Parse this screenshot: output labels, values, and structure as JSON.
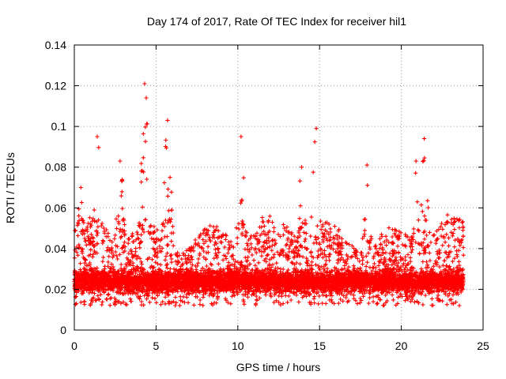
{
  "chart_data": {
    "type": "scatter",
    "title": "Day 174 of 2017, Rate Of TEC Index for receiver hil1",
    "xlabel": "GPS time / hours",
    "ylabel": "ROTI / TECUs",
    "xlim": [
      0,
      25
    ],
    "ylim": [
      0,
      0.14
    ],
    "x_ticks": [
      "0",
      "5",
      "10",
      "15",
      "20",
      "25"
    ],
    "y_ticks": [
      "0",
      "0.02",
      "0.04",
      "0.06",
      "0.08",
      "0.1",
      "0.12",
      "0.14"
    ],
    "x_tick_values": [
      0,
      5,
      10,
      15,
      20,
      25
    ],
    "y_tick_values": [
      0,
      0.02,
      0.04,
      0.06,
      0.08,
      0.1,
      0.12,
      0.14
    ],
    "grid": true,
    "marker": "+",
    "color": "#ff0000",
    "series": [
      {
        "name": "ROTI",
        "note": "dense cloud, approx. 0.005-0.05 TECU/s baseline with peaks",
        "x_range": [
          0,
          23.8
        ],
        "peaks": [
          {
            "x": 0.4,
            "y": 0.07
          },
          {
            "x": 1.4,
            "y": 0.095
          },
          {
            "x": 2.8,
            "y": 0.083
          },
          {
            "x": 4.3,
            "y": 0.121
          },
          {
            "x": 4.4,
            "y": 0.114
          },
          {
            "x": 5.7,
            "y": 0.103
          },
          {
            "x": 10.2,
            "y": 0.095
          },
          {
            "x": 13.9,
            "y": 0.08
          },
          {
            "x": 14.8,
            "y": 0.099
          },
          {
            "x": 17.9,
            "y": 0.081
          },
          {
            "x": 20.9,
            "y": 0.083
          },
          {
            "x": 21.4,
            "y": 0.094
          },
          {
            "x": 23.5,
            "y": 0.054
          }
        ]
      }
    ]
  }
}
